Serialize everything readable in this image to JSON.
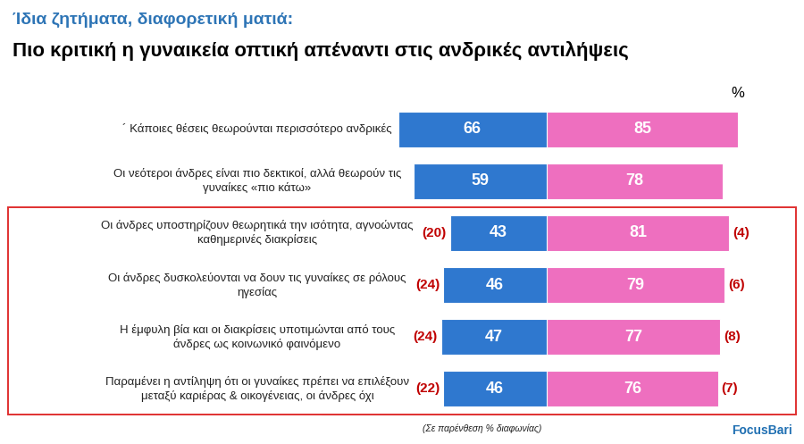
{
  "chart_data": {
    "type": "bar",
    "orientation": "horizontal",
    "title": "Ίδια ζητήματα, διαφορετική ματιά:",
    "subtitle": "Πιο κριτική η γυναικεία οπτική απέναντι στις ανδρικές αντιλήψεις",
    "unit_label": "%",
    "note": "(Σε παρένθεση % διαφωνίας)",
    "source": "FocusBari",
    "categories": [
      "´ Κάποιες θέσεις θεωρούνται περισσότερο ανδρικές",
      "Οι νεότεροι άνδρες είναι πιο δεκτικοί, αλλά θεωρούν τις γυναίκες «πιο κάτω»",
      "Οι άνδρες υποστηρίζουν θεωρητικά την ισότητα, αγνοώντας καθημερινές διακρίσεις",
      "Οι άνδρες δυσκολεύονται να δουν τις γυναίκες σε ρόλους ηγεσίας",
      "Η έμφυλη βία και οι διακρίσεις υποτιμώνται από τους άνδρες ως κοινωνικό φαινόμενο",
      "Παραμένει η αντίληψη ότι οι γυναίκες πρέπει να επιλέξουν μεταξύ καριέρας & οικογένειας, οι άνδρες όχι"
    ],
    "series": [
      {
        "color": "#2f78cf",
        "values": [
          66,
          59,
          43,
          46,
          47,
          46
        ],
        "disagreement": [
          null,
          null,
          20,
          24,
          24,
          22
        ],
        "disagreement_labels": [
          null,
          null,
          "(20)",
          "(24)",
          "(24)",
          "(22)"
        ]
      },
      {
        "color": "#ee6fbf",
        "values": [
          85,
          78,
          81,
          79,
          77,
          76
        ],
        "disagreement": [
          null,
          null,
          4,
          6,
          8,
          7
        ],
        "disagreement_labels": [
          null,
          null,
          "(4)",
          "(6)",
          "(8)",
          "(7)"
        ]
      }
    ],
    "xlim": [
      0,
      100
    ],
    "xticks": [],
    "grid": false,
    "data_labels": true,
    "tick_labels": "y"
  }
}
